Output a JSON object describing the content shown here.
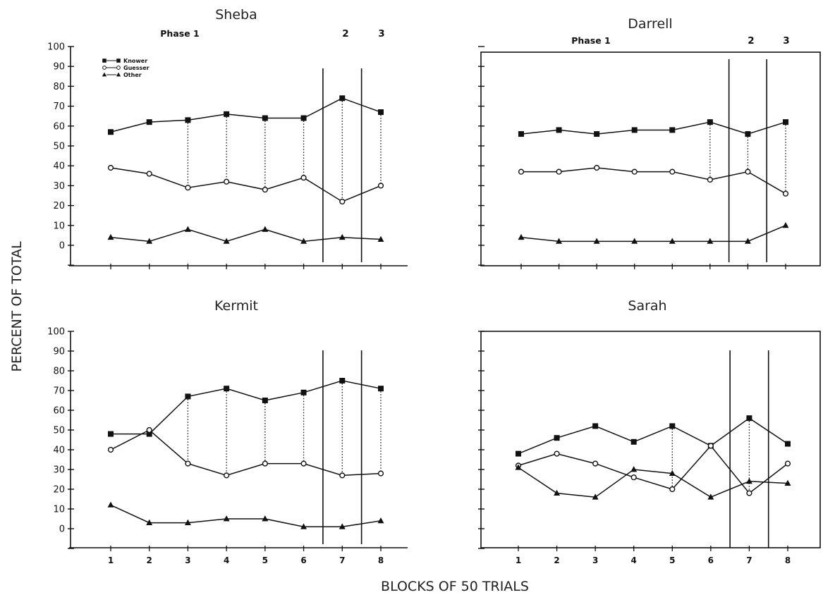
{
  "figure": {
    "ylabel": "PERCENT OF TOTAL",
    "xlabel": "BLOCKS OF 50 TRIALS"
  },
  "legend": {
    "entries": [
      {
        "name": "Knower",
        "marker": "square"
      },
      {
        "name": "Guesser",
        "marker": "circle"
      },
      {
        "name": "Other",
        "marker": "triangle"
      }
    ]
  },
  "chart_data": [
    {
      "type": "line",
      "title": "Sheba",
      "phase_labels": [
        "Phase 1",
        "2",
        "3"
      ],
      "phase_boundaries": [
        6.5,
        7.5
      ],
      "x": [
        1,
        2,
        3,
        4,
        5,
        6,
        7,
        8
      ],
      "ylim": [
        0,
        100
      ],
      "yticks": [
        0,
        10,
        20,
        30,
        40,
        50,
        60,
        70,
        80,
        90,
        100
      ],
      "show_yticks": true,
      "show_xticks": false,
      "box": false,
      "legend": true,
      "dotted_connectors_at": [
        3,
        4,
        5,
        6,
        7,
        8
      ],
      "series": [
        {
          "name": "Knower",
          "marker": "square",
          "values": [
            57,
            62,
            63,
            66,
            64,
            64,
            74,
            67
          ]
        },
        {
          "name": "Guesser",
          "marker": "circle",
          "values": [
            39,
            36,
            29,
            32,
            28,
            34,
            22,
            30
          ]
        },
        {
          "name": "Other",
          "marker": "triangle",
          "values": [
            4,
            2,
            8,
            2,
            8,
            2,
            4,
            3
          ]
        }
      ]
    },
    {
      "type": "line",
      "title": "Darrell",
      "phase_labels": [
        "Phase 1",
        "2",
        "3"
      ],
      "phase_boundaries": [
        6.5,
        7.5
      ],
      "x": [
        1,
        2,
        3,
        4,
        5,
        6,
        7,
        8
      ],
      "ylim": [
        0,
        100
      ],
      "yticks": [
        0,
        10,
        20,
        30,
        40,
        50,
        60,
        70,
        80,
        90,
        100
      ],
      "show_yticks": false,
      "show_xticks": false,
      "box": true,
      "legend": false,
      "dotted_connectors_at": [
        6,
        7,
        8
      ],
      "series": [
        {
          "name": "Knower",
          "marker": "square",
          "values": [
            56,
            58,
            56,
            58,
            58,
            62,
            56,
            62
          ]
        },
        {
          "name": "Guesser",
          "marker": "circle",
          "values": [
            37,
            37,
            39,
            37,
            37,
            33,
            37,
            26
          ]
        },
        {
          "name": "Other",
          "marker": "triangle",
          "values": [
            4,
            2,
            2,
            2,
            2,
            2,
            2,
            10
          ]
        }
      ]
    },
    {
      "type": "line",
      "title": "Kermit",
      "phase_boundaries": [
        6.5,
        7.5
      ],
      "x": [
        1,
        2,
        3,
        4,
        5,
        6,
        7,
        8
      ],
      "x_tick_labels": [
        "1",
        "2",
        "3",
        "4",
        "5",
        "6",
        "7",
        "8"
      ],
      "ylim": [
        0,
        100
      ],
      "yticks": [
        0,
        10,
        20,
        30,
        40,
        50,
        60,
        70,
        80,
        90,
        100
      ],
      "show_yticks": true,
      "show_xticks": true,
      "box": false,
      "legend": false,
      "dotted_connectors_at": [
        3,
        4,
        5,
        6,
        7,
        8
      ],
      "series": [
        {
          "name": "Knower",
          "marker": "square",
          "values": [
            48,
            48,
            67,
            71,
            65,
            69,
            75,
            71
          ]
        },
        {
          "name": "Guesser",
          "marker": "circle",
          "values": [
            40,
            50,
            33,
            27,
            33,
            33,
            27,
            28
          ]
        },
        {
          "name": "Other",
          "marker": "triangle",
          "values": [
            12,
            3,
            3,
            5,
            5,
            1,
            1,
            4
          ]
        }
      ]
    },
    {
      "type": "line",
      "title": "Sarah",
      "phase_boundaries": [
        6.5,
        7.5
      ],
      "x": [
        1,
        2,
        3,
        4,
        5,
        6,
        7,
        8
      ],
      "x_tick_labels": [
        "1",
        "2",
        "3",
        "4",
        "5",
        "6",
        "7",
        "8"
      ],
      "ylim": [
        0,
        100
      ],
      "yticks": [
        0,
        10,
        20,
        30,
        40,
        50,
        60,
        70,
        80,
        90,
        100
      ],
      "show_yticks": false,
      "show_xticks": true,
      "box": true,
      "legend": false,
      "dotted_connectors_at": [
        5,
        7
      ],
      "series": [
        {
          "name": "Knower",
          "marker": "square",
          "values": [
            38,
            46,
            52,
            44,
            52,
            42,
            56,
            43
          ]
        },
        {
          "name": "Guesser",
          "marker": "circle",
          "values": [
            32,
            38,
            33,
            26,
            20,
            42,
            18,
            33
          ]
        },
        {
          "name": "Other",
          "marker": "triangle",
          "values": [
            31,
            18,
            16,
            30,
            28,
            16,
            24,
            23
          ]
        }
      ]
    }
  ]
}
